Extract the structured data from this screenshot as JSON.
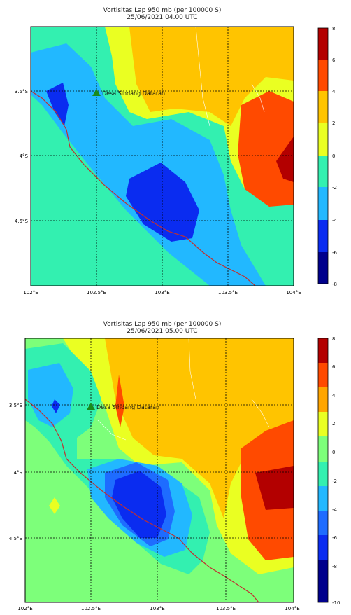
{
  "maps": [
    {
      "title_line1": "Vortisitas Lap 950 mb (per 100000 S)",
      "title_line2": "25/06/2021 04.00 UTC",
      "marker_label": "Desa Sindang Dataran",
      "x_ticks": [
        "102°E",
        "102.5°E",
        "103°E",
        "103.5°E",
        "104°E"
      ],
      "y_ticks": [
        "3.5°S",
        "4°S",
        "4.5°S"
      ],
      "colorbar_ticks": [
        "8",
        "6",
        "4",
        "2",
        "0",
        "-2",
        "-4",
        "-6",
        "-8"
      ]
    },
    {
      "title_line1": "Vortisitas Lap 950 mb (per 100000 S)",
      "title_line2": "25/06/2021 05.00 UTC",
      "marker_label": "Desa Sindang Dataran",
      "x_ticks": [
        "102°E",
        "102.5°E",
        "103°E",
        "103.5°E",
        "104°E"
      ],
      "y_ticks": [
        "3.5°S",
        "4°S",
        "4.5°S"
      ],
      "colorbar_ticks": [
        "8",
        "6",
        "4",
        "2",
        "0",
        "-2",
        "-4",
        "-6",
        "-8",
        "-10"
      ]
    }
  ],
  "colors": {
    "dark_red": "#b30000",
    "red_orange": "#ff4a00",
    "orange": "#ffa500",
    "gold": "#ffc400",
    "yellow": "#eaff22",
    "light_green": "#7dff7a",
    "cyan_green": "#33f0b0",
    "light_blue": "#22b8ff",
    "mid_blue": "#1e6cff",
    "blue": "#0a2cf0",
    "navy": "#00008c",
    "coastline": "#c03030",
    "marker": "#1a8a1a"
  }
}
